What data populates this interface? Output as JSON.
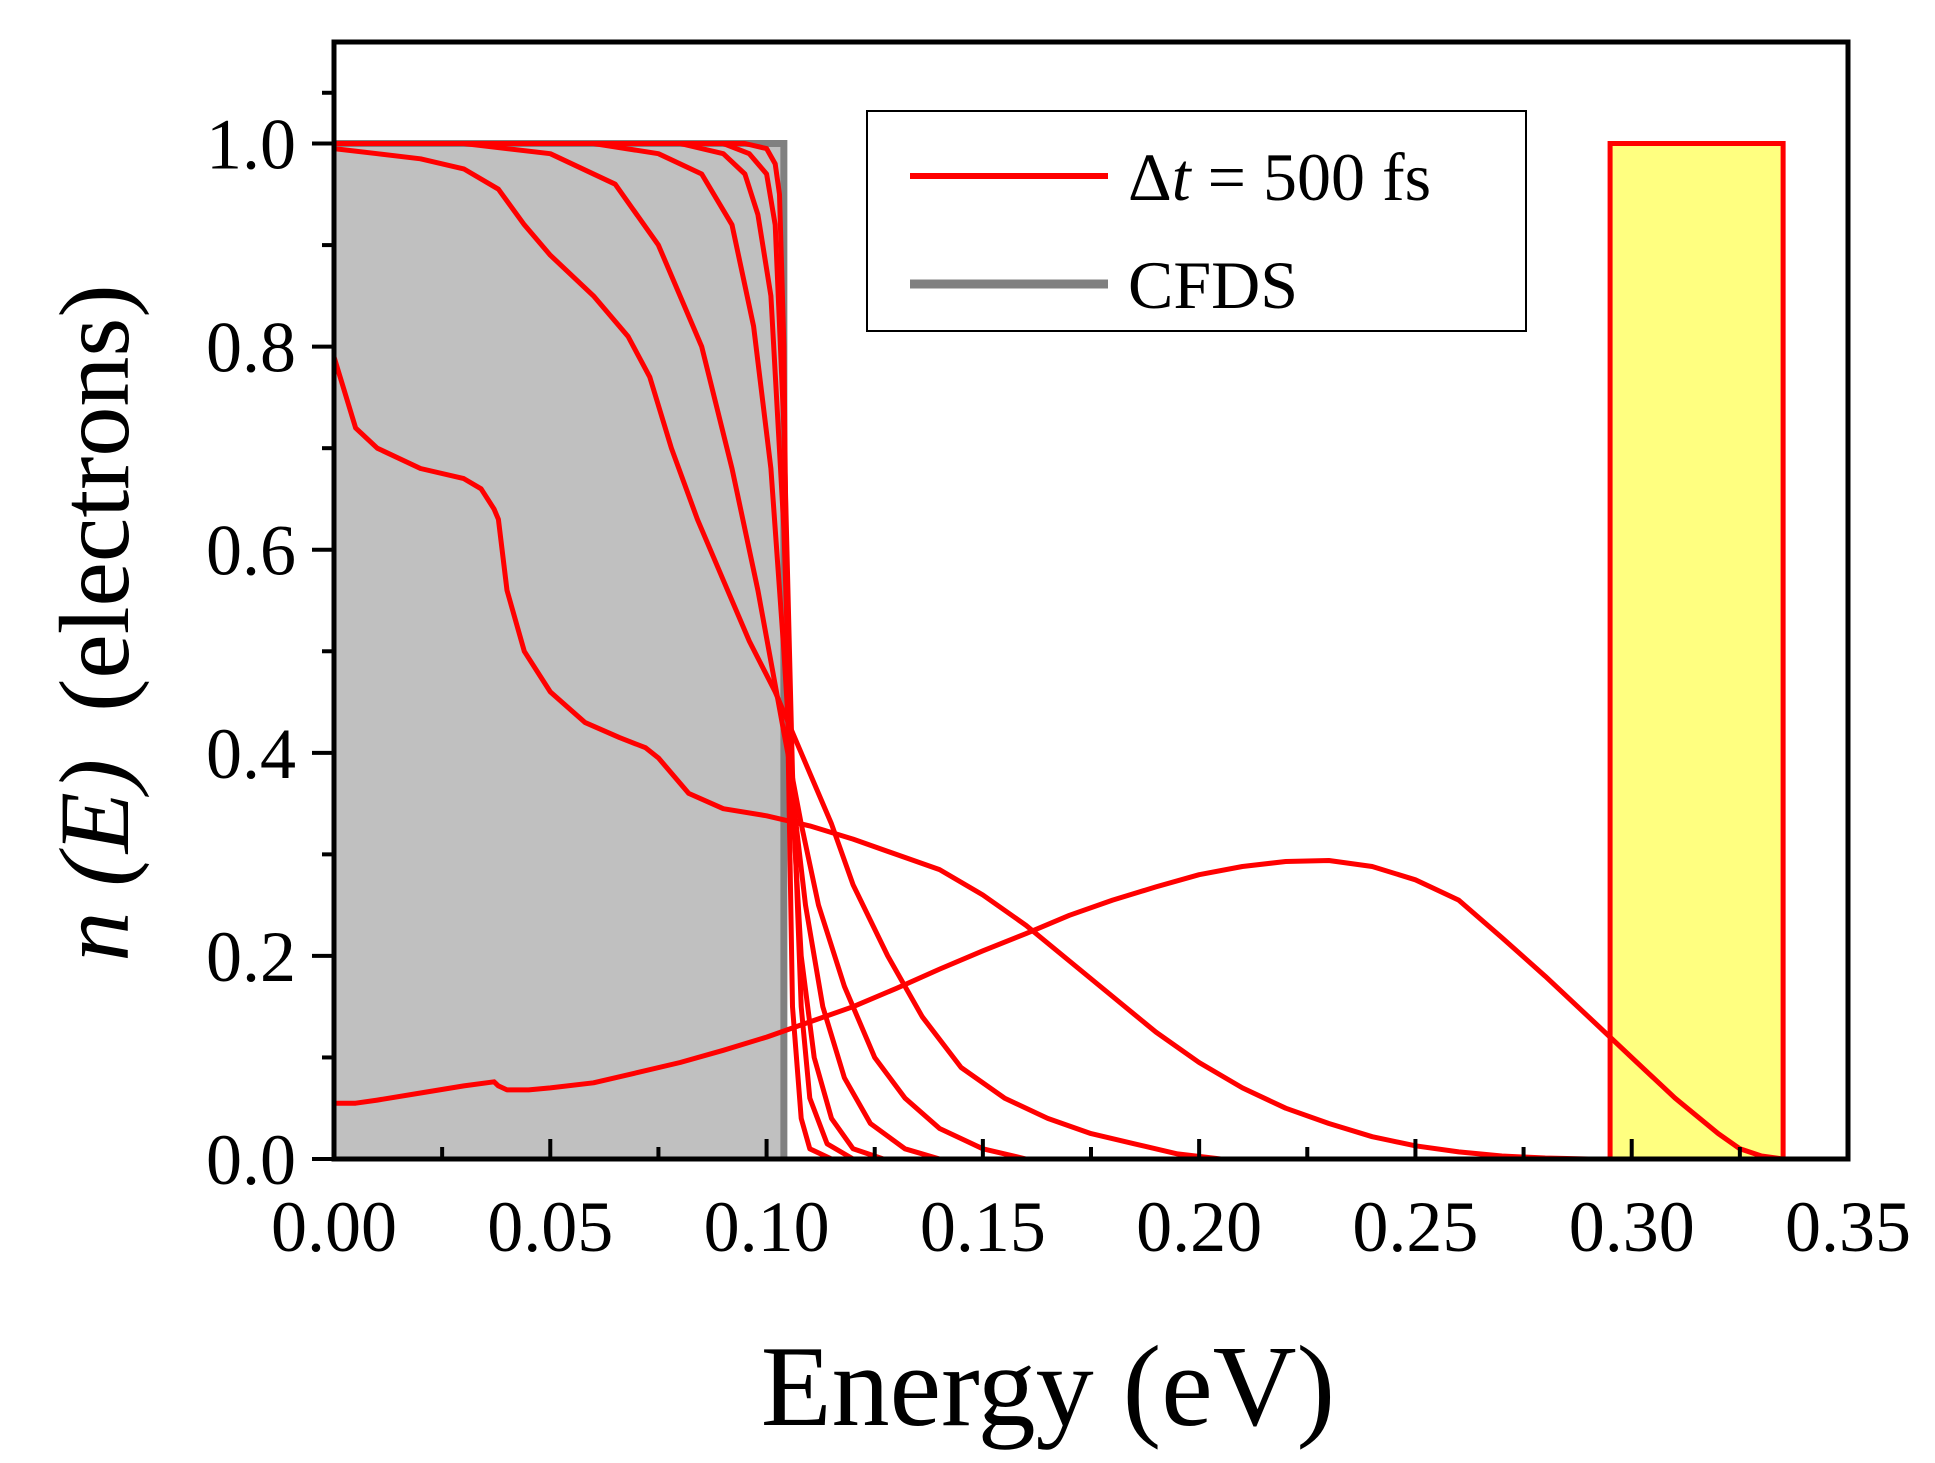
{
  "chart_data": {
    "type": "line",
    "title": "",
    "xlabel": "Energy (eV)",
    "ylabel_italic": "n (E)",
    "ylabel_rest": "(electrons)",
    "xlim": [
      0.0,
      0.35
    ],
    "ylim": [
      0.0,
      1.1
    ],
    "xticks": [
      0.0,
      0.05,
      0.1,
      0.15,
      0.2,
      0.25,
      0.3,
      0.35
    ],
    "xtick_labels": [
      "0.00",
      "0.05",
      "0.10",
      "0.15",
      "0.20",
      "0.25",
      "0.30",
      "0.35"
    ],
    "yticks": [
      0.0,
      0.2,
      0.4,
      0.6,
      0.8,
      1.0
    ],
    "ytick_labels": [
      "0.0",
      "0.2",
      "0.4",
      "0.6",
      "0.8",
      "1.0"
    ],
    "legend": {
      "position": "top-right",
      "entries": [
        {
          "label_prefix": "Δ",
          "label_italic": "t",
          "label_rest": " = 500 fs",
          "color": "#ff0000"
        },
        {
          "label": "CFDS",
          "color": "#808080"
        }
      ]
    },
    "colors": {
      "red": "#ff0000",
      "gray_line": "#808080",
      "gray_fill": "#c0c0c0",
      "yellow_fill": "#ffff80"
    },
    "cfds_region": {
      "x_start": 0.0,
      "x_end": 0.104,
      "value": 1.0
    },
    "initial_box": {
      "x_start": 0.295,
      "x_end": 0.335,
      "value": 1.0
    },
    "series": [
      {
        "name": "step-1",
        "x": [
          0.0,
          0.095,
          0.1,
          0.102,
          0.103,
          0.104,
          0.105,
          0.106,
          0.108,
          0.11,
          0.115
        ],
        "y": [
          1.0,
          1.0,
          0.995,
          0.98,
          0.95,
          0.8,
          0.4,
          0.15,
          0.04,
          0.01,
          0.0
        ]
      },
      {
        "name": "step-2",
        "x": [
          0.0,
          0.09,
          0.096,
          0.1,
          0.102,
          0.104,
          0.106,
          0.108,
          0.11,
          0.114,
          0.12
        ],
        "y": [
          1.0,
          1.0,
          0.99,
          0.97,
          0.92,
          0.72,
          0.38,
          0.15,
          0.06,
          0.015,
          0.0
        ]
      },
      {
        "name": "step-3",
        "x": [
          0.0,
          0.08,
          0.09,
          0.095,
          0.098,
          0.101,
          0.104,
          0.106,
          0.108,
          0.111,
          0.115,
          0.12,
          0.127
        ],
        "y": [
          1.0,
          1.0,
          0.99,
          0.97,
          0.93,
          0.85,
          0.62,
          0.35,
          0.2,
          0.1,
          0.04,
          0.01,
          0.0
        ]
      },
      {
        "name": "step-4",
        "x": [
          0.0,
          0.06,
          0.075,
          0.085,
          0.092,
          0.097,
          0.101,
          0.104,
          0.106,
          0.109,
          0.113,
          0.118,
          0.124,
          0.132,
          0.14
        ],
        "y": [
          1.0,
          1.0,
          0.99,
          0.97,
          0.92,
          0.82,
          0.68,
          0.5,
          0.36,
          0.25,
          0.15,
          0.08,
          0.035,
          0.01,
          0.0
        ]
      },
      {
        "name": "step-5",
        "x": [
          0.0,
          0.03,
          0.05,
          0.065,
          0.075,
          0.085,
          0.092,
          0.098,
          0.104,
          0.108,
          0.112,
          0.118,
          0.125,
          0.132,
          0.14,
          0.15,
          0.16
        ],
        "y": [
          1.0,
          1.0,
          0.99,
          0.96,
          0.9,
          0.8,
          0.68,
          0.56,
          0.42,
          0.33,
          0.25,
          0.17,
          0.1,
          0.06,
          0.03,
          0.01,
          0.0
        ]
      },
      {
        "name": "step-6",
        "x": [
          0.0,
          0.01,
          0.02,
          0.03,
          0.038,
          0.044,
          0.05,
          0.06,
          0.068,
          0.073,
          0.078,
          0.084,
          0.09,
          0.096,
          0.102,
          0.106,
          0.11,
          0.115,
          0.12,
          0.128,
          0.136,
          0.145,
          0.155,
          0.165,
          0.175,
          0.185,
          0.195,
          0.205
        ],
        "y": [
          0.995,
          0.99,
          0.985,
          0.975,
          0.955,
          0.92,
          0.89,
          0.85,
          0.81,
          0.77,
          0.7,
          0.63,
          0.57,
          0.51,
          0.46,
          0.42,
          0.38,
          0.33,
          0.27,
          0.2,
          0.14,
          0.09,
          0.06,
          0.04,
          0.025,
          0.015,
          0.005,
          0.0
        ]
      },
      {
        "name": "step-7",
        "x": [
          0.0,
          0.005,
          0.01,
          0.02,
          0.03,
          0.034,
          0.037,
          0.038,
          0.04,
          0.044,
          0.05,
          0.058,
          0.066,
          0.072,
          0.075,
          0.078,
          0.082,
          0.09,
          0.1,
          0.11,
          0.12,
          0.13,
          0.14,
          0.15,
          0.16,
          0.17,
          0.18,
          0.19,
          0.2,
          0.21,
          0.22,
          0.23,
          0.24,
          0.25,
          0.26,
          0.27,
          0.28,
          0.29,
          0.3
        ],
        "y": [
          0.79,
          0.72,
          0.7,
          0.68,
          0.67,
          0.66,
          0.64,
          0.63,
          0.56,
          0.5,
          0.46,
          0.43,
          0.415,
          0.405,
          0.395,
          0.38,
          0.36,
          0.345,
          0.338,
          0.328,
          0.315,
          0.3,
          0.285,
          0.26,
          0.23,
          0.195,
          0.16,
          0.125,
          0.095,
          0.07,
          0.05,
          0.035,
          0.022,
          0.013,
          0.007,
          0.003,
          0.001,
          0.0,
          0.0
        ]
      },
      {
        "name": "step-8",
        "x": [
          0.0,
          0.005,
          0.01,
          0.02,
          0.03,
          0.037,
          0.038,
          0.04,
          0.045,
          0.05,
          0.06,
          0.07,
          0.08,
          0.09,
          0.1,
          0.11,
          0.12,
          0.13,
          0.14,
          0.15,
          0.16,
          0.17,
          0.18,
          0.19,
          0.2,
          0.21,
          0.22,
          0.23,
          0.24,
          0.25,
          0.26,
          0.27,
          0.28,
          0.29,
          0.3,
          0.31,
          0.32,
          0.325,
          0.33,
          0.335
        ],
        "y": [
          0.055,
          0.055,
          0.058,
          0.065,
          0.072,
          0.076,
          0.072,
          0.068,
          0.068,
          0.07,
          0.075,
          0.085,
          0.095,
          0.107,
          0.12,
          0.135,
          0.15,
          0.168,
          0.187,
          0.205,
          0.222,
          0.24,
          0.255,
          0.268,
          0.28,
          0.288,
          0.293,
          0.294,
          0.288,
          0.275,
          0.255,
          0.218,
          0.18,
          0.14,
          0.1,
          0.06,
          0.025,
          0.01,
          0.003,
          0.0
        ]
      }
    ]
  }
}
